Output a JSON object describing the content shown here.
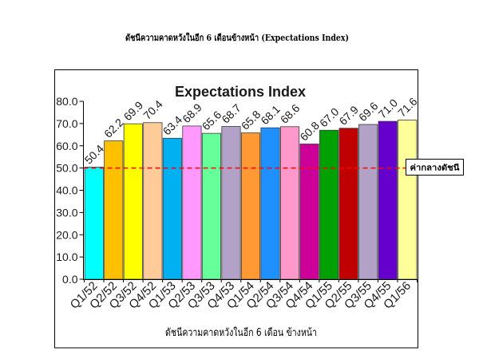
{
  "page": {
    "heading": "ดัชนีความคาดหวังในอีก 6 เดือนข้างหน้า (Expectations Index)"
  },
  "chart_data": {
    "type": "bar",
    "title": "Expectations Index",
    "xlabel": "ดัชนีความคาดหวังในอีก 6 เดือน ข้างหน้า",
    "ylim": [
      0,
      80
    ],
    "ytick_labels": [
      "0.0",
      "10.0",
      "20.0",
      "30.0",
      "40.0",
      "50.0",
      "60.0",
      "70.0",
      "80.0"
    ],
    "categories": [
      "Q1/52",
      "Q2/52",
      "Q3/52",
      "Q4/52",
      "Q1/53",
      "Q2/53",
      "Q3/53",
      "Q4/53",
      "Q1/54",
      "Q2/54",
      "Q3/54",
      "Q4/54",
      "Q1/55",
      "Q2/55",
      "Q3/55",
      "Q4/55",
      "Q1/56"
    ],
    "values": [
      50.4,
      62.2,
      69.9,
      70.4,
      63.4,
      68.9,
      65.6,
      68.7,
      65.8,
      68.1,
      68.6,
      60.8,
      67.0,
      67.9,
      69.6,
      71.0,
      71.6
    ],
    "colors": [
      "#00FFFF",
      "#FFC000",
      "#FFFF00",
      "#FFCC99",
      "#00B0F0",
      "#FF99FF",
      "#66FF99",
      "#B3A2C7",
      "#FF9933",
      "#1E90FF",
      "#FF99CC",
      "#CC0099",
      "#00A000",
      "#C00000",
      "#B3A2C7",
      "#6600CC",
      "#FFFF99"
    ],
    "data_labels": true,
    "grid": false,
    "legend": "none",
    "reference_line": {
      "value": 50,
      "label": "ค่ากลางดัชนี",
      "color": "#FF0000",
      "style": "dashed"
    }
  }
}
